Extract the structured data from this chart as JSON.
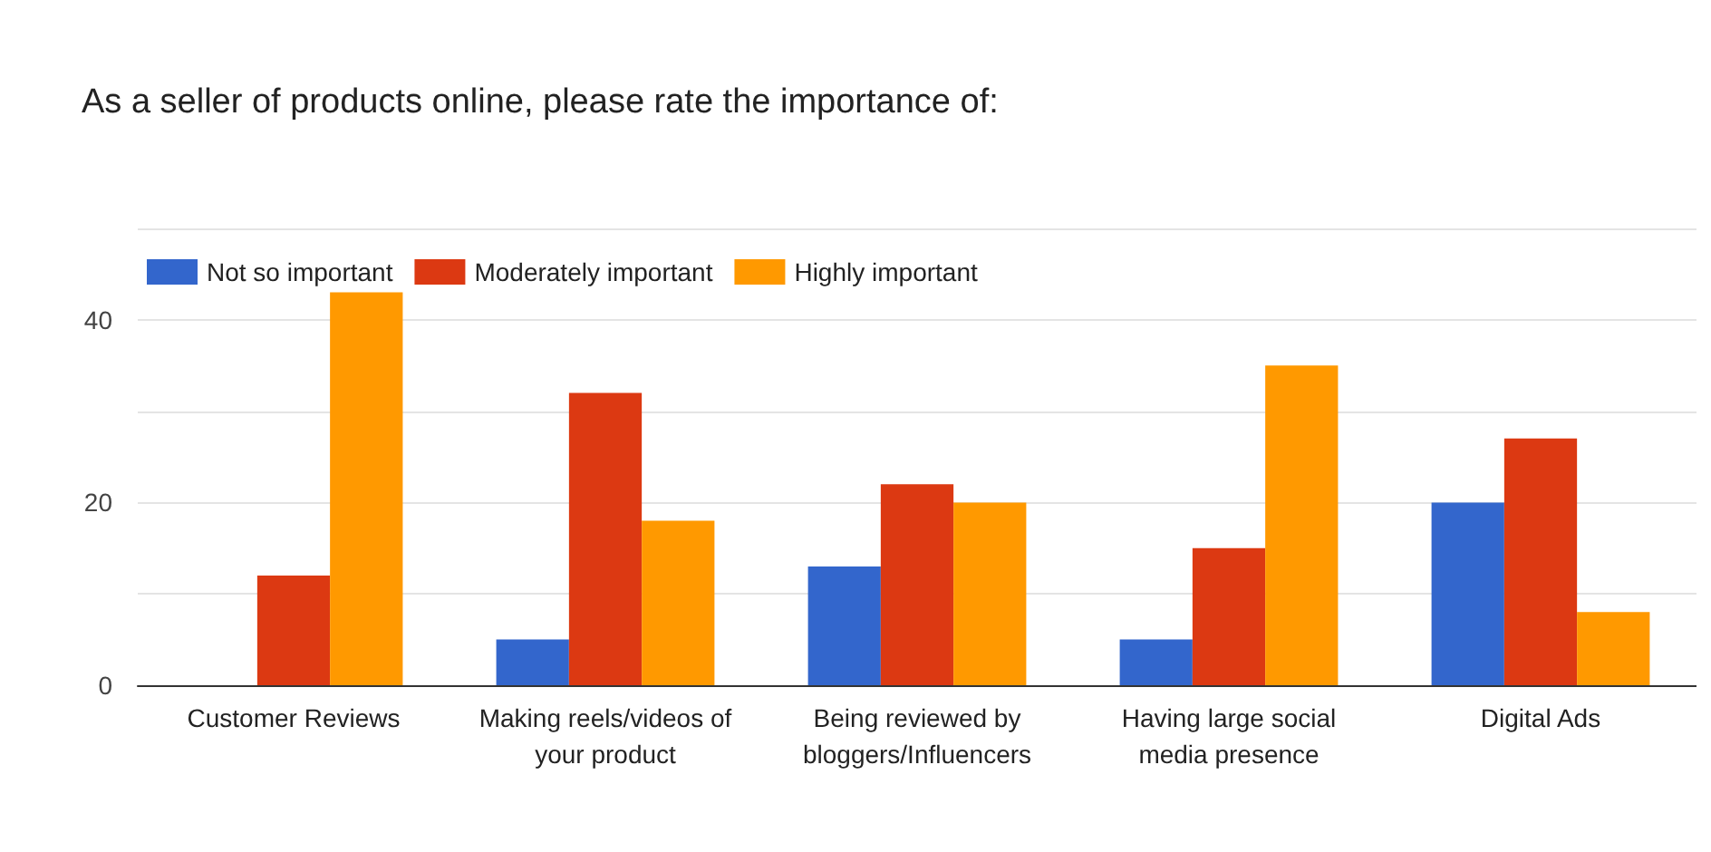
{
  "chart_data": {
    "type": "bar",
    "title": "As a seller of products online, please rate the importance of:",
    "categories": [
      "Customer Reviews",
      "Making reels/videos of\nyour product",
      "Being reviewed by\nbloggers/Influencers",
      "Having large social\nmedia presence",
      "Digital Ads"
    ],
    "series": [
      {
        "name": "Not so important",
        "color": "#3366cc",
        "values": [
          0,
          5,
          13,
          5,
          20
        ]
      },
      {
        "name": "Moderately important",
        "color": "#dc3912",
        "values": [
          12,
          32,
          22,
          15,
          27
        ]
      },
      {
        "name": "Highly important",
        "color": "#ff9900",
        "values": [
          43,
          18,
          20,
          35,
          8
        ]
      }
    ],
    "ylim": [
      0,
      50
    ],
    "yticks": [
      0,
      {
        "value": 10,
        "label": null
      },
      20,
      {
        "value": 30,
        "label": null
      },
      40,
      {
        "value": 50,
        "label": null
      }
    ],
    "grid": "y",
    "legend": "top left"
  }
}
